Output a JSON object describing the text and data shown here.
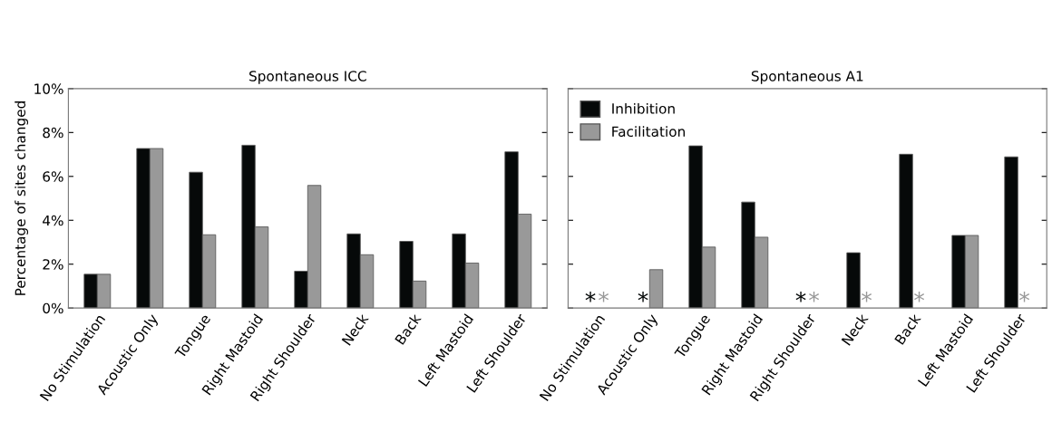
{
  "chart_data": [
    {
      "type": "bar",
      "title": "Spontaneous ICC",
      "ylabel": "Percentage of sites changed",
      "categories": [
        "No Stimulation",
        "Acoustic Only",
        "Tongue",
        "Right Mastoid",
        "Right Shoulder",
        "Neck",
        "Back",
        "Left Mastoid",
        "Left Shoulder"
      ],
      "series": [
        {
          "color": "#060909",
          "values": [
            1.54,
            7.27,
            6.19,
            7.42,
            1.68,
            3.38,
            3.04,
            3.38,
            7.12
          ]
        },
        {
          "color": "#999999",
          "values": [
            1.54,
            7.27,
            3.34,
            3.7,
            5.59,
            2.43,
            1.23,
            2.05,
            4.28
          ]
        }
      ],
      "ylim": [
        0,
        10
      ],
      "yticks": [
        {
          "value": 0,
          "label": "0%"
        },
        {
          "value": 2,
          "label": "2%"
        },
        {
          "value": 4,
          "label": "4%"
        },
        {
          "value": 6,
          "label": "6%"
        },
        {
          "value": 8,
          "label": "8%"
        },
        {
          "value": 10,
          "label": "10%"
        }
      ],
      "grid": false,
      "legend": false
    },
    {
      "type": "bar",
      "title": "Spontaneous A1",
      "categories": [
        "No Stimulation",
        "Acoustic Only",
        "Tongue",
        "Right Mastoid",
        "Right Shoulder",
        "Neck",
        "Back",
        "Left Mastoid",
        "Left Shoulder"
      ],
      "series": [
        {
          "name": "Inhibition",
          "color": "#060909",
          "values": [
            0,
            0,
            7.39,
            4.83,
            0,
            2.52,
            7.01,
            3.31,
            6.89
          ],
          "value_labels": [
            "*",
            "*",
            null,
            null,
            "*",
            null,
            null,
            null,
            null
          ]
        },
        {
          "name": "Facilitation",
          "color": "#999999",
          "values": [
            0,
            1.75,
            2.78,
            3.23,
            0,
            0,
            0,
            3.31,
            0
          ],
          "value_labels": [
            "*",
            null,
            null,
            null,
            "*",
            "*",
            "*",
            null,
            "*"
          ]
        }
      ],
      "ylim": [
        0,
        10
      ],
      "yticks": [
        {
          "value": 0,
          "label": null
        },
        {
          "value": 2,
          "label": null
        },
        {
          "value": 4,
          "label": null
        },
        {
          "value": 6,
          "label": null
        },
        {
          "value": 8,
          "label": null
        },
        {
          "value": 10,
          "label": null
        }
      ],
      "tick_labels": "x",
      "grid": false,
      "legend": "top left"
    }
  ]
}
